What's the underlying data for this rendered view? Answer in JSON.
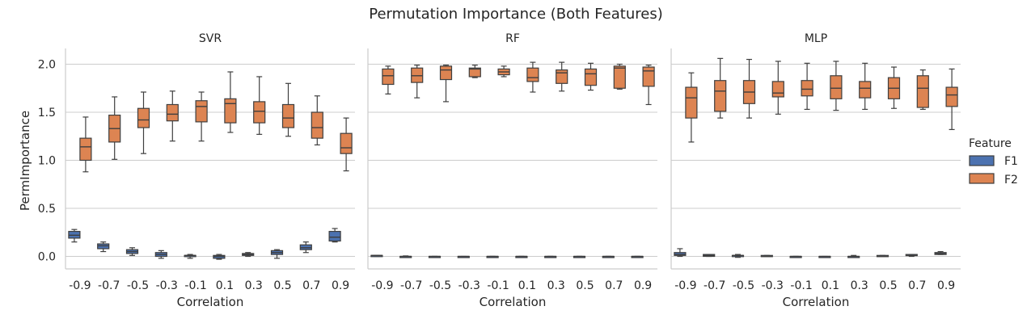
{
  "chart_data": {
    "type": "box",
    "title": "Permutation Importance (Both Features)",
    "ylabel": "PermImportance",
    "xlabel": "Correlation",
    "categories": [
      "-0.9",
      "-0.7",
      "-0.5",
      "-0.3",
      "-0.1",
      "0.1",
      "0.3",
      "0.5",
      "0.7",
      "0.9"
    ],
    "yticks": [
      "0.0",
      "0.5",
      "1.0",
      "1.5",
      "2.0"
    ],
    "ytick_values": [
      0.0,
      0.5,
      1.0,
      1.5,
      2.0
    ],
    "ylim": [
      -0.13,
      2.17
    ],
    "grid": "horizontal",
    "legend": {
      "title": "Feature",
      "placement": "right",
      "entries": [
        {
          "name": "F1",
          "color": "#4c72b0"
        },
        {
          "name": "F2",
          "color": "#dd8452"
        }
      ]
    },
    "panels": [
      {
        "title": "SVR",
        "series": [
          {
            "name": "F1",
            "color": "#4c72b0",
            "boxes": [
              [
                0.15,
                0.19,
                0.22,
                0.26,
                0.28
              ],
              [
                0.05,
                0.08,
                0.11,
                0.13,
                0.15
              ],
              [
                0.01,
                0.03,
                0.05,
                0.07,
                0.09
              ],
              [
                -0.02,
                0.0,
                0.02,
                0.04,
                0.06
              ],
              [
                -0.02,
                0.0,
                0.01,
                0.01,
                0.02
              ],
              [
                -0.03,
                -0.02,
                0.0,
                0.01,
                0.02
              ],
              [
                0.0,
                0.01,
                0.02,
                0.03,
                0.04
              ],
              [
                -0.02,
                0.02,
                0.04,
                0.06,
                0.07
              ],
              [
                0.04,
                0.07,
                0.09,
                0.12,
                0.15
              ],
              [
                0.15,
                0.16,
                0.2,
                0.26,
                0.29
              ]
            ]
          },
          {
            "name": "F2",
            "color": "#dd8452",
            "boxes": [
              [
                0.88,
                1.0,
                1.14,
                1.23,
                1.45
              ],
              [
                1.01,
                1.19,
                1.33,
                1.47,
                1.66
              ],
              [
                1.07,
                1.34,
                1.42,
                1.54,
                1.71
              ],
              [
                1.2,
                1.41,
                1.48,
                1.58,
                1.72
              ],
              [
                1.2,
                1.4,
                1.56,
                1.62,
                1.71
              ],
              [
                1.29,
                1.39,
                1.59,
                1.64,
                1.92
              ],
              [
                1.27,
                1.39,
                1.51,
                1.61,
                1.87
              ],
              [
                1.25,
                1.34,
                1.44,
                1.58,
                1.8
              ],
              [
                1.16,
                1.23,
                1.34,
                1.5,
                1.67
              ],
              [
                0.89,
                1.07,
                1.13,
                1.28,
                1.44
              ]
            ]
          }
        ]
      },
      {
        "title": "RF",
        "series": [
          {
            "name": "F1",
            "color": "#4c72b0",
            "boxes": [
              [
                0.0,
                0.0,
                0.01,
                0.01,
                0.01
              ],
              [
                -0.005,
                0.0,
                0.0,
                0.0,
                0.005
              ],
              [
                0.0,
                0.0,
                0.0,
                0.0,
                0.0
              ],
              [
                -0.005,
                0.0,
                0.0,
                0.0,
                0.0
              ],
              [
                0.0,
                0.0,
                0.0,
                0.0,
                0.0
              ],
              [
                0.0,
                0.0,
                0.0,
                0.0,
                0.0
              ],
              [
                0.0,
                0.0,
                0.0,
                0.0,
                0.0
              ],
              [
                0.0,
                0.0,
                0.0,
                0.0,
                0.0
              ],
              [
                0.0,
                0.0,
                0.0,
                0.0,
                0.0
              ],
              [
                0.0,
                0.0,
                0.0,
                0.0,
                0.0
              ]
            ]
          },
          {
            "name": "F2",
            "color": "#dd8452",
            "boxes": [
              [
                1.69,
                1.79,
                1.88,
                1.95,
                1.98
              ],
              [
                1.65,
                1.81,
                1.88,
                1.96,
                1.99
              ],
              [
                1.61,
                1.84,
                1.94,
                1.98,
                1.99
              ],
              [
                1.86,
                1.87,
                1.95,
                1.96,
                1.99
              ],
              [
                1.87,
                1.89,
                1.92,
                1.95,
                1.98
              ],
              [
                1.71,
                1.82,
                1.86,
                1.96,
                2.02
              ],
              [
                1.72,
                1.8,
                1.91,
                1.94,
                2.02
              ],
              [
                1.73,
                1.78,
                1.9,
                1.95,
                2.01
              ],
              [
                1.74,
                1.75,
                1.96,
                1.98,
                2.0
              ],
              [
                1.58,
                1.77,
                1.93,
                1.97,
                1.99
              ]
            ]
          }
        ]
      },
      {
        "title": "MLP",
        "series": [
          {
            "name": "F1",
            "color": "#4c72b0",
            "boxes": [
              [
                0.0,
                0.01,
                0.02,
                0.04,
                0.08
              ],
              [
                0.0,
                0.0,
                0.01,
                0.02,
                0.02
              ],
              [
                -0.01,
                0.0,
                0.01,
                0.01,
                0.02
              ],
              [
                0.0,
                0.0,
                0.0,
                0.01,
                0.01
              ],
              [
                0.0,
                0.0,
                0.0,
                0.0,
                0.0
              ],
              [
                -0.01,
                -0.005,
                0.0,
                0.0,
                0.0
              ],
              [
                -0.01,
                0.0,
                0.0,
                0.0,
                0.01
              ],
              [
                0.0,
                0.0,
                0.0,
                0.01,
                0.01
              ],
              [
                0.0,
                0.01,
                0.01,
                0.02,
                0.02
              ],
              [
                0.02,
                0.02,
                0.03,
                0.04,
                0.05
              ]
            ]
          },
          {
            "name": "F2",
            "color": "#dd8452",
            "boxes": [
              [
                1.19,
                1.44,
                1.65,
                1.76,
                1.91
              ],
              [
                1.44,
                1.51,
                1.72,
                1.83,
                2.06
              ],
              [
                1.44,
                1.59,
                1.71,
                1.83,
                2.05
              ],
              [
                1.48,
                1.66,
                1.7,
                1.82,
                2.03
              ],
              [
                1.53,
                1.67,
                1.74,
                1.83,
                2.01
              ],
              [
                1.52,
                1.64,
                1.75,
                1.88,
                2.03
              ],
              [
                1.53,
                1.65,
                1.75,
                1.82,
                2.01
              ],
              [
                1.54,
                1.64,
                1.75,
                1.86,
                1.97
              ],
              [
                1.53,
                1.55,
                1.75,
                1.88,
                1.94
              ],
              [
                1.32,
                1.56,
                1.68,
                1.76,
                1.95
              ]
            ]
          }
        ]
      }
    ]
  }
}
